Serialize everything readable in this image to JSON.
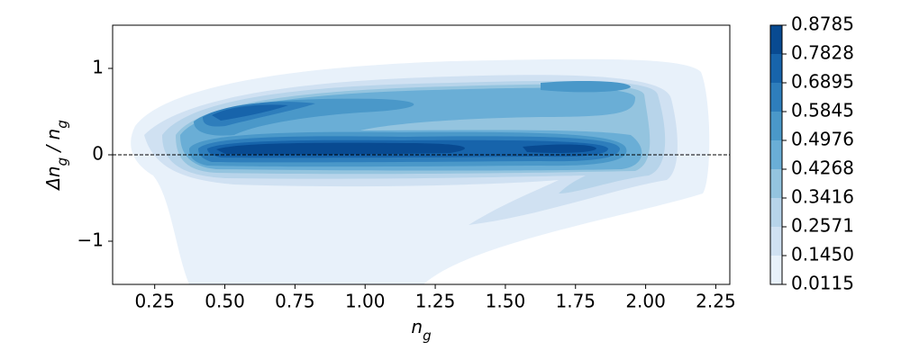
{
  "chart_data": {
    "type": "contourf",
    "xlabel": [
      "n",
      "g"
    ],
    "ylabel": [
      "Δn",
      "g",
      " / n",
      "g"
    ],
    "xlim": [
      0.1,
      2.3
    ],
    "ylim": [
      -1.5,
      1.5
    ],
    "xticks": [
      0.25,
      {
        "value": 0.5,
        "label": "0.50"
      },
      0.75,
      {
        "value": 1,
        "label": "1.00"
      },
      1.25,
      {
        "value": 1.5,
        "label": "1.50"
      },
      1.75,
      {
        "value": 2,
        "label": "2.00"
      },
      2.25
    ],
    "yticks": [
      {
        "value": -1,
        "label": "−1"
      },
      0,
      1
    ],
    "hline": 0,
    "levels": [
      0.0115,
      {
        "value": 0.145,
        "label": "0.1450"
      },
      0.2571,
      0.3416,
      0.4268,
      0.4976,
      0.5845,
      0.6895,
      0.7828,
      0.8785
    ],
    "colors": [
      "#e8f1fa",
      "#d0e1f2",
      "#b7d4ea",
      "#94c4df",
      "#6aaed6",
      "#4a98c9",
      "#2e7ebc",
      "#1764ab",
      "#084a91"
    ]
  }
}
